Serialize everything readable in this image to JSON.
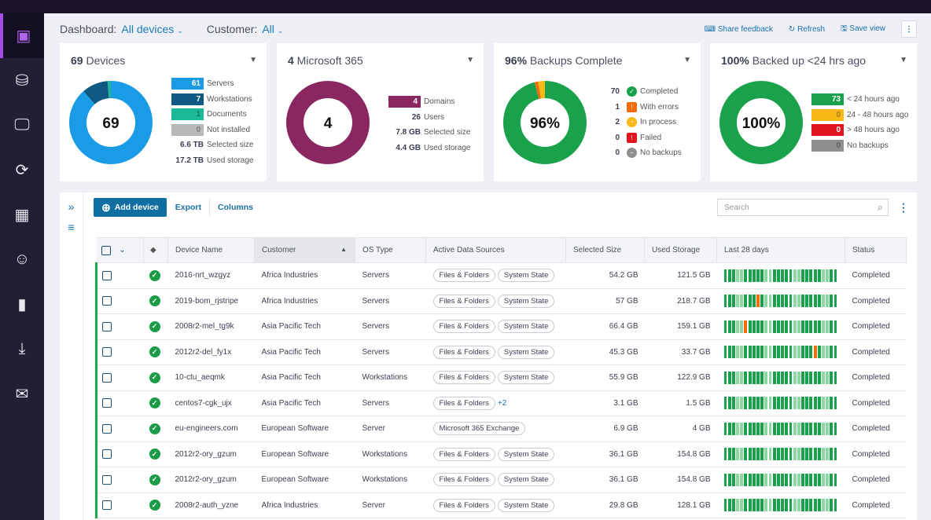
{
  "header": {
    "dashboard_label": "Dashboard:",
    "dashboard_value": "All devices",
    "customer_label": "Customer:",
    "customer_value": "All",
    "share_feedback": "Share feedback",
    "refresh": "Refresh",
    "save_view": "Save view"
  },
  "colors": {
    "servers": "#1a9be6",
    "workstations": "#0e5a85",
    "documents": "#1bb89a",
    "not_installed": "#b8b8b8",
    "m365": "#8a2660",
    "completed": "#1aa14b",
    "errors": "#f46b0a",
    "in_process": "#fbb917",
    "failed": "#e0141e",
    "no_backup": "#8f8f8f"
  },
  "cards": [
    {
      "title_num": "69",
      "title_text": " Devices",
      "center": "69",
      "legend": [
        {
          "value": "61",
          "label": "Servers"
        },
        {
          "value": "7",
          "label": "Workstations"
        },
        {
          "value": "1",
          "label": "Documents"
        },
        {
          "value": "0",
          "label": "Not installed"
        }
      ],
      "stats": [
        {
          "value": "6.6 TB",
          "label": "Selected size"
        },
        {
          "value": "17.2 TB",
          "label": "Used storage"
        }
      ]
    },
    {
      "title_num": "4",
      "title_text": " Microsoft 365",
      "center": "4",
      "legend": [
        {
          "value": "4",
          "label": "Domains"
        }
      ],
      "stats": [
        {
          "value": "26",
          "label": "Users"
        },
        {
          "value": "7.8 GB",
          "label": "Selected size"
        },
        {
          "value": "4.4 GB",
          "label": "Used storage"
        }
      ]
    },
    {
      "title_num": "96%",
      "title_text": " Backups Complete",
      "center": "96%",
      "legend": [
        {
          "value": "70",
          "label": "Completed",
          "icon": "check-circle-icon"
        },
        {
          "value": "1",
          "label": "With errors",
          "icon": "warning-icon"
        },
        {
          "value": "2",
          "label": "In process",
          "icon": "clock-icon"
        },
        {
          "value": "0",
          "label": "Failed",
          "icon": "failed-icon"
        },
        {
          "value": "0",
          "label": "No backups",
          "icon": "minus-circle-icon"
        }
      ]
    },
    {
      "title_num": "100%",
      "title_text": " Backed up <24 hrs ago",
      "center": "100%",
      "legend": [
        {
          "value": "73",
          "label": "< 24 hours ago"
        },
        {
          "value": "0",
          "label": "24 - 48 hours ago"
        },
        {
          "value": "0",
          "label": "> 48 hours ago"
        },
        {
          "value": "0",
          "label": "No backups"
        }
      ]
    }
  ],
  "toolbar": {
    "add_device": "Add device",
    "export": "Export",
    "columns": "Columns",
    "search_placeholder": "Search"
  },
  "table": {
    "columns": [
      "Device Name",
      "Customer",
      "OS Type",
      "Active Data Sources",
      "Selected Size",
      "Used Storage",
      "Last 28 days",
      "Status"
    ],
    "rows": [
      {
        "name": "2016-nrt_wzgyz",
        "customer": "Africa Industries",
        "os": "Servers",
        "sources": [
          "Files & Folders",
          "System State"
        ],
        "more": "",
        "selected": "54.2 GB",
        "used": "121.5 GB",
        "status": "Completed",
        "errors": []
      },
      {
        "name": "2019-bom_rjstripe",
        "customer": "Africa Industries",
        "os": "Servers",
        "sources": [
          "Files & Folders",
          "System State"
        ],
        "more": "",
        "selected": "57 GB",
        "used": "218.7 GB",
        "status": "Completed",
        "errors": [
          8
        ]
      },
      {
        "name": "2008r2-mel_tg9k",
        "customer": "Asia Pacific Tech",
        "os": "Servers",
        "sources": [
          "Files & Folders",
          "System State"
        ],
        "more": "",
        "selected": "66.4 GB",
        "used": "159.1 GB",
        "status": "Completed",
        "errors": [
          5
        ]
      },
      {
        "name": "2012r2-del_fy1x",
        "customer": "Asia Pacific Tech",
        "os": "Servers",
        "sources": [
          "Files & Folders",
          "System State"
        ],
        "more": "",
        "selected": "45.3 GB",
        "used": "33.7 GB",
        "status": "Completed",
        "errors": [
          22
        ]
      },
      {
        "name": "10-ctu_aeqmk",
        "customer": "Asia Pacific Tech",
        "os": "Workstations",
        "sources": [
          "Files & Folders",
          "System State"
        ],
        "more": "",
        "selected": "55.9 GB",
        "used": "122.9 GB",
        "status": "Completed",
        "errors": []
      },
      {
        "name": "centos7-cgk_ujx",
        "customer": "Asia Pacific Tech",
        "os": "Servers",
        "sources": [
          "Files & Folders"
        ],
        "more": "+2",
        "selected": "3.1 GB",
        "used": "1.5 GB",
        "status": "Completed",
        "errors": []
      },
      {
        "name": "eu-engineers.com",
        "customer": "European Software",
        "os": "Server",
        "sources": [
          "Microsoft 365 Exchange"
        ],
        "more": "",
        "selected": "6.9 GB",
        "used": "4 GB",
        "status": "Completed",
        "errors": []
      },
      {
        "name": "2012r2-ory_gzum",
        "customer": "European Software",
        "os": "Workstations",
        "sources": [
          "Files & Folders",
          "System State"
        ],
        "more": "",
        "selected": "36.1 GB",
        "used": "154.8 GB",
        "status": "Completed",
        "errors": []
      },
      {
        "name": "2012r2-ory_gzum",
        "customer": "European Software",
        "os": "Workstations",
        "sources": [
          "Files & Folders",
          "System State"
        ],
        "more": "",
        "selected": "36.1 GB",
        "used": "154.8 GB",
        "status": "Completed",
        "errors": []
      },
      {
        "name": "2008r2-auth_yzne",
        "customer": "Africa Industries",
        "os": "Server",
        "sources": [
          "Files & Folders",
          "System State"
        ],
        "more": "",
        "selected": "29.8 GB",
        "used": "128.1 GB",
        "status": "Completed",
        "errors": []
      }
    ]
  }
}
